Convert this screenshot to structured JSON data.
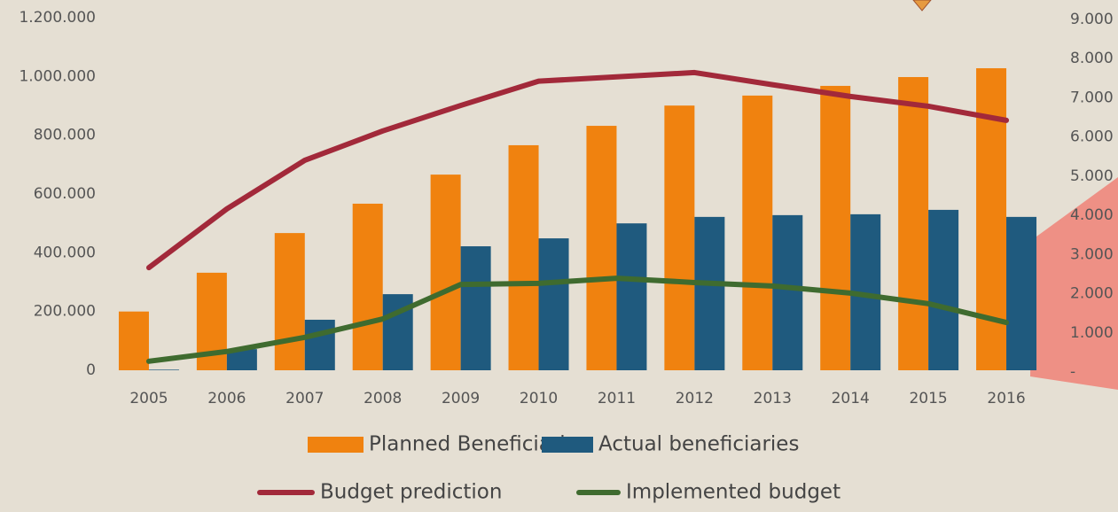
{
  "chart_data": {
    "type": "bar-line",
    "categories": [
      "2005",
      "2006",
      "2007",
      "2008",
      "2009",
      "2010",
      "2011",
      "2012",
      "2013",
      "2014",
      "2015",
      "2016"
    ],
    "series": [
      {
        "name": "Planned Beneficiaries",
        "type": "bar",
        "color": "#f0820f",
        "values": [
          200000,
          332000,
          467000,
          567000,
          666000,
          766000,
          832000,
          901000,
          935000,
          968000,
          998000,
          1028000
        ]
      },
      {
        "name": "Actual beneficiaries",
        "type": "bar",
        "color": "#1f5a7e",
        "values": [
          2000,
          72000,
          172000,
          259000,
          422000,
          449000,
          500000,
          522000,
          528000,
          531000,
          546000,
          522000
        ]
      },
      {
        "name": "Budget prediction",
        "type": "line",
        "axis": "y2",
        "color": "#a2293a",
        "values": [
          2620,
          4120,
          5360,
          6110,
          6760,
          7380,
          7490,
          7600,
          7290,
          6990,
          6740,
          6380
        ]
      },
      {
        "name": "Implemented budget",
        "type": "line",
        "axis": "y2",
        "color": "#3f6b2f",
        "values": [
          230,
          480,
          840,
          1310,
          2190,
          2220,
          2350,
          2240,
          2150,
          1970,
          1700,
          1220
        ]
      }
    ],
    "ylim": [
      0,
      1200000
    ],
    "yticks": [
      0,
      {
        "value": 200000,
        "label": "200.000"
      },
      {
        "value": 400000,
        "label": "400.000"
      },
      {
        "value": 600000,
        "label": "600.000"
      },
      {
        "value": 800000,
        "label": "800.000"
      },
      {
        "value": 1000000,
        "label": "1.000.000"
      },
      {
        "value": 1200000,
        "label": "1.200.000"
      }
    ],
    "y2lim": [
      0,
      9000
    ],
    "y2ticks": [
      {
        "value": 0,
        "label": "-"
      },
      {
        "value": 1000,
        "label": "1.000"
      },
      {
        "value": 2000,
        "label": "2.000"
      },
      {
        "value": 3000,
        "label": "3.000"
      },
      {
        "value": 4000,
        "label": "4.000"
      },
      {
        "value": 5000,
        "label": "5.000"
      },
      {
        "value": 6000,
        "label": "6.000"
      },
      {
        "value": 7000,
        "label": "7.000"
      },
      {
        "value": 8000,
        "label": "8.000"
      },
      {
        "value": 9000,
        "label": "9.000"
      }
    ],
    "grid": false
  }
}
